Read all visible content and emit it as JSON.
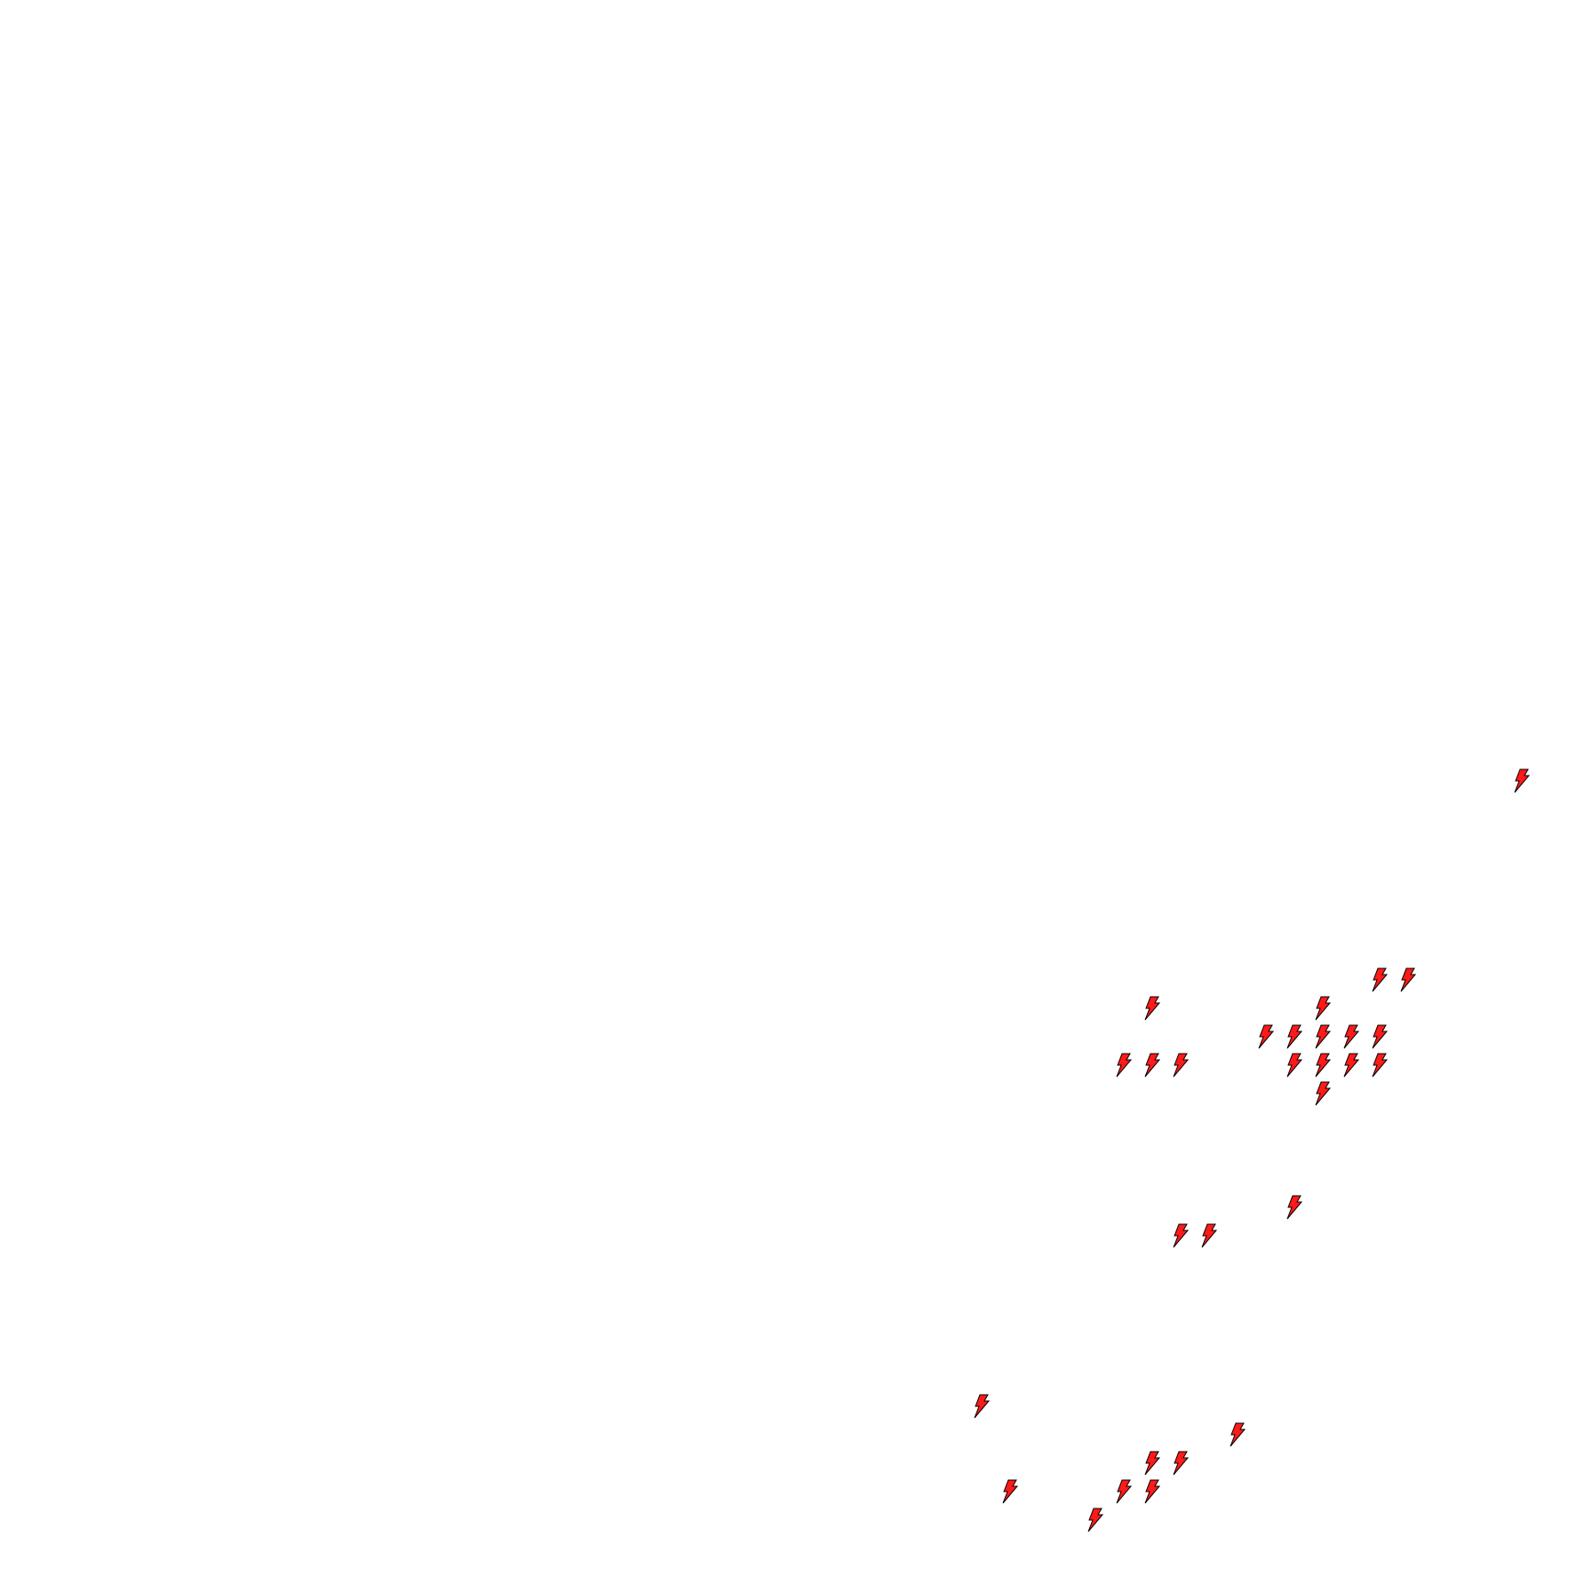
{
  "marker": {
    "icon": "lightning-bolt-icon",
    "fill": "#ff1a1a",
    "stroke": "#000000"
  }
}
